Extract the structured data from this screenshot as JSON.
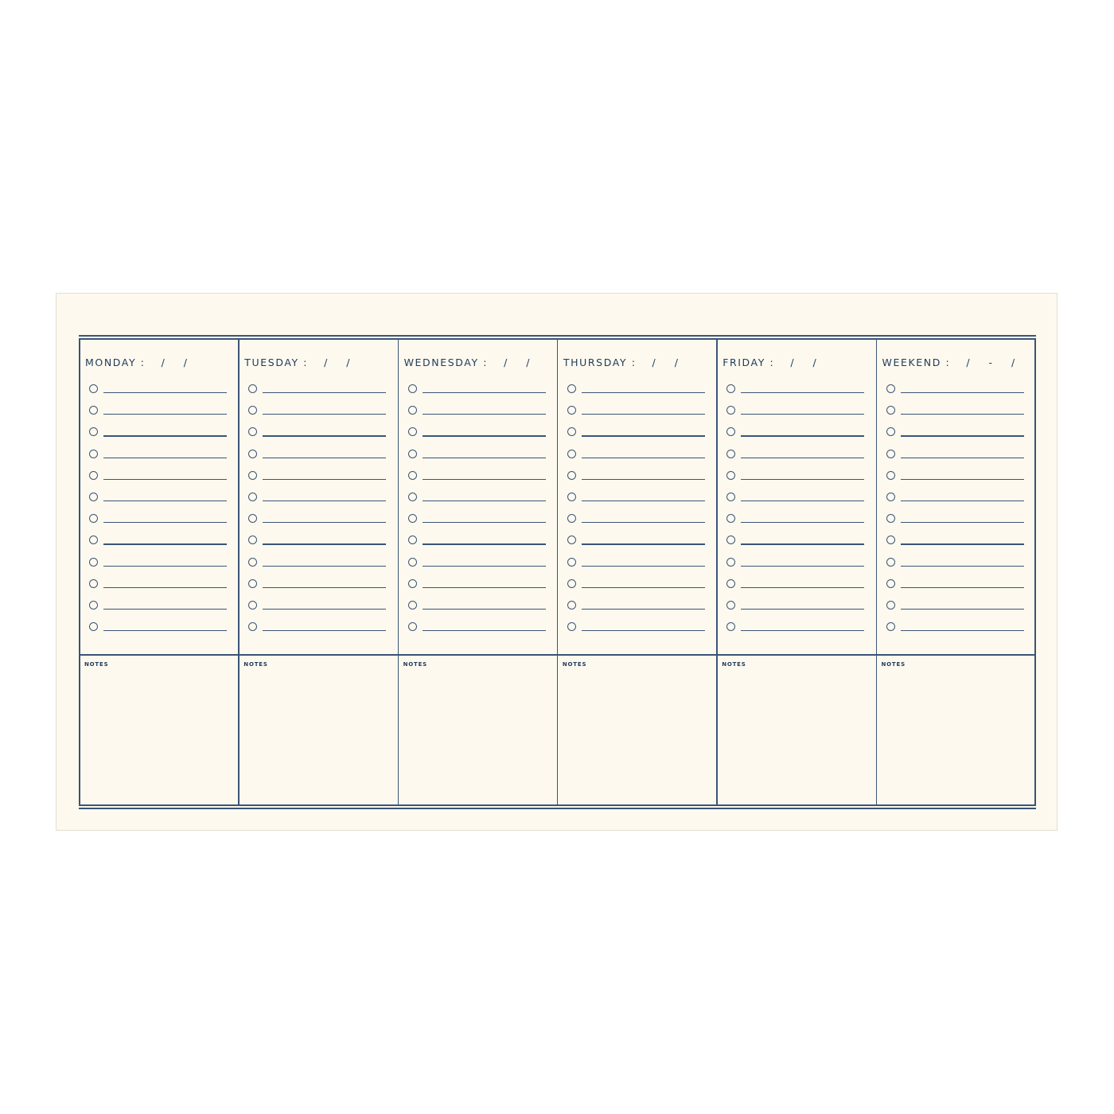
{
  "planner": {
    "days": [
      {
        "label": "MONDAY :",
        "date": "/ /"
      },
      {
        "label": "TUESDAY :",
        "date": "/ /"
      },
      {
        "label": "WEDNESDAY :",
        "date": "/ /"
      },
      {
        "label": "THURSDAY :",
        "date": "/ /"
      },
      {
        "label": "FRIDAY :",
        "date": "/ /"
      },
      {
        "label": "WEEKEND :",
        "date": "/ - /"
      }
    ],
    "notes_label": "NOTES",
    "colors": {
      "ink": "#3a5478",
      "paper": "#fdf9ee"
    }
  }
}
